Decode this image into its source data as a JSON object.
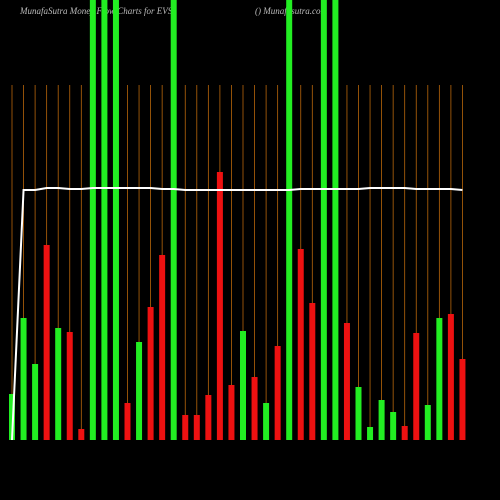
{
  "chart_data": {
    "type": "bar",
    "title": "MunafaSutra  Money Flow Charts for EVSI",
    "subtitle": "() Munafasutra.com",
    "categories": [
      null,
      null,
      null,
      null,
      null,
      null,
      null,
      null,
      null,
      null,
      null,
      null,
      null,
      null,
      null,
      null,
      null,
      null,
      null,
      null,
      null,
      null,
      null,
      null,
      null,
      null,
      null,
      null,
      null,
      null,
      null,
      null,
      null,
      null,
      null,
      null,
      null,
      null,
      null,
      null
    ],
    "series": [
      {
        "name": null,
        "values": [
          46,
          122,
          76,
          195,
          112,
          108,
          11,
          440,
          440,
          440,
          37,
          98,
          133,
          185,
          440,
          25,
          25,
          45,
          268,
          55,
          109,
          63,
          37,
          94,
          440,
          191,
          137,
          440,
          440,
          117,
          53,
          13,
          40,
          28,
          14,
          107,
          35,
          122,
          126,
          81
        ],
        "colors": [
          "#22ee22",
          "#22ee22",
          "#22ee22",
          "#ee1111",
          "#22ee22",
          "#ee1111",
          "#ee1111",
          "#22ee22",
          "#22ee22",
          "#22ee22",
          "#ee1111",
          "#22ee22",
          "#ee1111",
          "#ee1111",
          "#22ee22",
          "#ee1111",
          "#ee1111",
          "#ee1111",
          "#ee1111",
          "#ee1111",
          "#22ee22",
          "#ee1111",
          "#22ee22",
          "#ee1111",
          "#22ee22",
          "#ee1111",
          "#ee1111",
          "#22ee22",
          "#22ee22",
          "#ee1111",
          "#22ee22",
          "#22ee22",
          "#22ee22",
          "#22ee22",
          "#ee1111",
          "#ee1111",
          "#22ee22",
          "#22ee22",
          "#ee1111",
          "#ee1111"
        ]
      },
      {
        "name": null,
        "type": "line",
        "color": "#ffffff",
        "values": [
          0,
          250,
          250,
          252,
          252,
          251,
          251,
          252,
          252,
          252,
          252,
          252,
          252,
          251,
          251,
          250,
          250,
          250,
          250,
          250,
          250,
          250,
          250,
          250,
          250,
          251,
          251,
          251,
          251,
          251,
          251,
          252,
          252,
          252,
          252,
          251,
          251,
          251,
          251,
          250
        ]
      }
    ],
    "ylim": [
      0,
      440
    ],
    "grid": true,
    "grid_color": "#b8660b",
    "background": "#000000"
  }
}
